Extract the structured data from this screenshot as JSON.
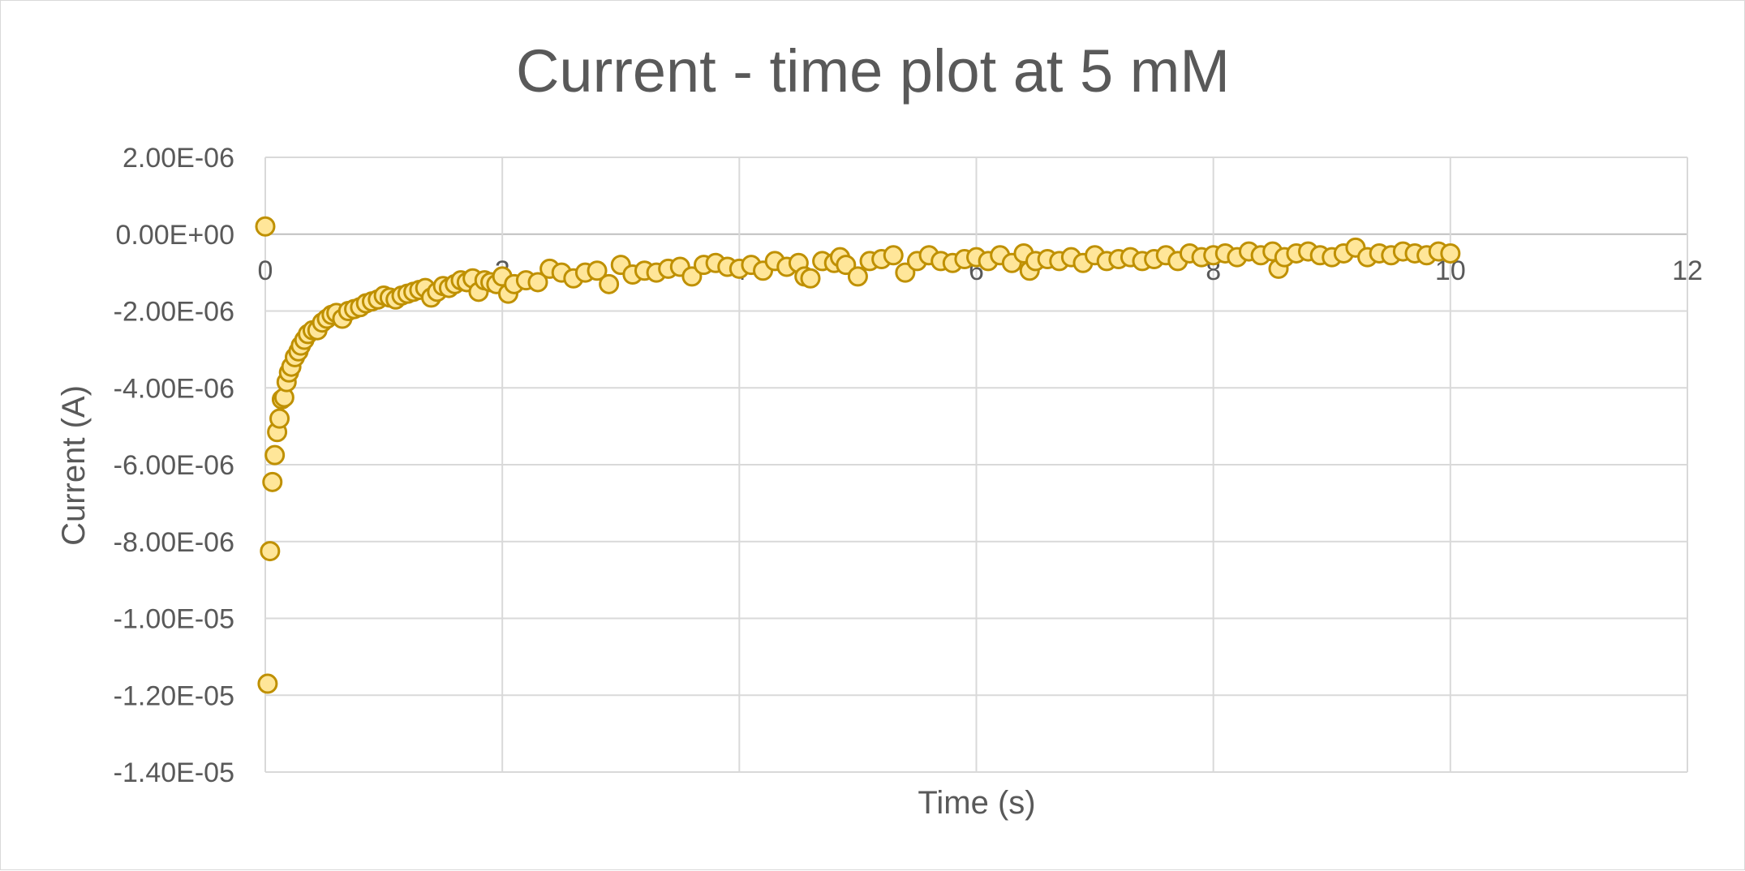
{
  "chart_data": {
    "type": "scatter",
    "title": "Current - time plot at 5 mM",
    "xlabel": "Time (s)",
    "ylabel": "Current (A)",
    "xlim": [
      0,
      12
    ],
    "ylim": [
      -1.4e-05,
      2e-06
    ],
    "x_ticks": [
      "0",
      "2",
      "4",
      "6",
      "8",
      "10",
      "12"
    ],
    "y_ticks": [
      "2.00E-06",
      "0.00E+00",
      "-2.00E-06",
      "-4.00E-06",
      "-6.00E-06",
      "-8.00E-06",
      "-1.00E-05",
      "-1.20E-05",
      "-1.40E-05"
    ],
    "grid": true,
    "legend": "none",
    "marker_fill": "#ffe699",
    "marker_stroke": "#bf9000",
    "series": [
      {
        "x": [
          0.0,
          0.02,
          0.04,
          0.06,
          0.08,
          0.1,
          0.12,
          0.14,
          0.16,
          0.18,
          0.2,
          0.22,
          0.25,
          0.28,
          0.3,
          0.33,
          0.36,
          0.4,
          0.44,
          0.48,
          0.52,
          0.56,
          0.6,
          0.65,
          0.7,
          0.75,
          0.8,
          0.85,
          0.9,
          0.95,
          1.0,
          1.05,
          1.1,
          1.15,
          1.2,
          1.25,
          1.3,
          1.35,
          1.4,
          1.45,
          1.5,
          1.55,
          1.6,
          1.65,
          1.7,
          1.75,
          1.8,
          1.85,
          1.9,
          1.95,
          2.0,
          2.05,
          2.1,
          2.2,
          2.3,
          2.4,
          2.5,
          2.6,
          2.7,
          2.8,
          2.9,
          3.0,
          3.1,
          3.2,
          3.3,
          3.4,
          3.5,
          3.6,
          3.7,
          3.8,
          3.9,
          4.0,
          4.1,
          4.2,
          4.3,
          4.4,
          4.5,
          4.55,
          4.6,
          4.7,
          4.8,
          4.85,
          4.9,
          5.0,
          5.1,
          5.2,
          5.3,
          5.4,
          5.5,
          5.6,
          5.7,
          5.8,
          5.9,
          6.0,
          6.1,
          6.2,
          6.3,
          6.4,
          6.45,
          6.5,
          6.6,
          6.7,
          6.8,
          6.9,
          7.0,
          7.1,
          7.2,
          7.3,
          7.4,
          7.5,
          7.6,
          7.7,
          7.8,
          7.9,
          8.0,
          8.1,
          8.2,
          8.3,
          8.4,
          8.5,
          8.55,
          8.6,
          8.7,
          8.8,
          8.9,
          9.0,
          9.1,
          9.2,
          9.3,
          9.4,
          9.5,
          9.6,
          9.7,
          9.8,
          9.9,
          10.0
        ],
        "y": [
          2e-07,
          -1.17e-05,
          -8.25e-06,
          -6.45e-06,
          -5.75e-06,
          -5.15e-06,
          -4.8e-06,
          -4.3e-06,
          -4.25e-06,
          -3.85e-06,
          -3.6e-06,
          -3.45e-06,
          -3.2e-06,
          -3.05e-06,
          -2.9e-06,
          -2.75e-06,
          -2.6e-06,
          -2.5e-06,
          -2.5e-06,
          -2.3e-06,
          -2.2e-06,
          -2.1e-06,
          -2.05e-06,
          -2.2e-06,
          -2e-06,
          -1.95e-06,
          -1.9e-06,
          -1.8e-06,
          -1.75e-06,
          -1.7e-06,
          -1.6e-06,
          -1.65e-06,
          -1.7e-06,
          -1.6e-06,
          -1.55e-06,
          -1.5e-06,
          -1.45e-06,
          -1.4e-06,
          -1.65e-06,
          -1.5e-06,
          -1.35e-06,
          -1.4e-06,
          -1.3e-06,
          -1.2e-06,
          -1.25e-06,
          -1.15e-06,
          -1.5e-06,
          -1.2e-06,
          -1.25e-06,
          -1.3e-06,
          -1.1e-06,
          -1.55e-06,
          -1.3e-06,
          -1.2e-06,
          -1.25e-06,
          -9e-07,
          -1e-06,
          -1.15e-06,
          -1e-06,
          -9.5e-07,
          -1.3e-06,
          -8e-07,
          -1.05e-06,
          -9.5e-07,
          -1e-06,
          -9e-07,
          -8.5e-07,
          -1.1e-06,
          -8e-07,
          -7.5e-07,
          -8.5e-07,
          -9e-07,
          -8e-07,
          -9.5e-07,
          -7e-07,
          -8.5e-07,
          -7.5e-07,
          -1.1e-06,
          -1.15e-06,
          -7e-07,
          -7.5e-07,
          -6e-07,
          -8e-07,
          -1.1e-06,
          -7e-07,
          -6.5e-07,
          -5.5e-07,
          -1e-06,
          -7e-07,
          -5.5e-07,
          -7e-07,
          -7.5e-07,
          -6.5e-07,
          -6e-07,
          -7e-07,
          -5.5e-07,
          -7.5e-07,
          -5e-07,
          -9.5e-07,
          -7e-07,
          -6.5e-07,
          -7e-07,
          -6e-07,
          -7.5e-07,
          -5.5e-07,
          -7e-07,
          -6.5e-07,
          -6e-07,
          -7e-07,
          -6.5e-07,
          -5.5e-07,
          -7e-07,
          -5e-07,
          -6e-07,
          -5.5e-07,
          -5e-07,
          -6e-07,
          -4.5e-07,
          -5.5e-07,
          -4.5e-07,
          -9e-07,
          -6e-07,
          -5e-07,
          -4.5e-07,
          -5.5e-07,
          -6e-07,
          -5e-07,
          -3.5e-07,
          -6e-07,
          -5e-07,
          -5.5e-07,
          -4.5e-07,
          -5e-07,
          -5.5e-07,
          -4.5e-07,
          -5e-07
        ]
      }
    ]
  }
}
